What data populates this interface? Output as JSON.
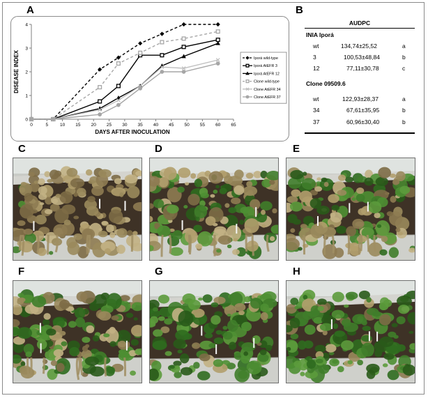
{
  "panels": {
    "a": "A",
    "b": "B",
    "c": "C",
    "d": "D",
    "e": "E",
    "f": "F",
    "g": "G",
    "h": "H"
  },
  "chart_data": {
    "type": "line",
    "xlabel": "DAYS AFTER INOCULATION",
    "ylabel": "DISEASE INDEX",
    "xlim": [
      0,
      65
    ],
    "ylim": [
      0,
      4
    ],
    "xticks": [
      0,
      5,
      10,
      15,
      20,
      25,
      30,
      35,
      40,
      45,
      50,
      55,
      60,
      65
    ],
    "yticks": [
      0,
      1,
      2,
      3,
      4
    ],
    "grid": false,
    "legend_position": "right",
    "series": [
      {
        "name": "Iporá wild-type",
        "color": "#000000",
        "dash": "4,3",
        "marker": "diamond",
        "x": [
          0,
          7,
          22,
          28,
          35,
          42,
          49,
          60
        ],
        "y": [
          0,
          0,
          2.1,
          2.6,
          3.2,
          3.6,
          4.0,
          4.0
        ]
      },
      {
        "name": "Iporá AtEFR 3",
        "color": "#000000",
        "dash": "",
        "marker": "square",
        "x": [
          0,
          7,
          22,
          28,
          35,
          42,
          49,
          60
        ],
        "y": [
          0,
          0,
          0.75,
          1.4,
          2.7,
          2.7,
          3.05,
          3.35
        ]
      },
      {
        "name": "Iporá AtEFR 12",
        "color": "#000000",
        "dash": "",
        "marker": "triangle",
        "x": [
          0,
          7,
          22,
          28,
          35,
          42,
          49,
          60
        ],
        "y": [
          0,
          0,
          0.45,
          0.9,
          1.4,
          2.25,
          2.65,
          3.2
        ]
      },
      {
        "name": "Clone wild-type",
        "color": "#a6a6a6",
        "dash": "4,3",
        "marker": "square",
        "x": [
          0,
          7,
          22,
          28,
          35,
          42,
          49,
          60
        ],
        "y": [
          0,
          0,
          1.35,
          2.35,
          2.8,
          3.25,
          3.4,
          3.7
        ]
      },
      {
        "name": "Clone AtEFR 34",
        "color": "#bfbfbf",
        "dash": "",
        "marker": "x",
        "x": [
          0,
          7,
          22,
          28,
          35,
          42,
          49,
          60
        ],
        "y": [
          0,
          0,
          0.4,
          0.8,
          1.4,
          2.2,
          2.15,
          2.5
        ]
      },
      {
        "name": "Clone AtEFR 37",
        "color": "#a6a6a6",
        "dash": "",
        "marker": "circle",
        "x": [
          0,
          7,
          22,
          28,
          35,
          42,
          49,
          60
        ],
        "y": [
          0,
          0,
          0.2,
          0.6,
          1.3,
          2.0,
          2.0,
          2.35
        ]
      }
    ]
  },
  "audpc": {
    "title": "AUDPC",
    "groups": [
      {
        "name": "INIA Iporá",
        "rows": [
          {
            "line": "wt",
            "value": "134,74±25,52",
            "letter": "a"
          },
          {
            "line": "3",
            "value": "100,53±48,84",
            "letter": "b"
          },
          {
            "line": "12",
            "value": "77,11±30,78",
            "letter": "c"
          }
        ]
      },
      {
        "name": "Clone 09509.6",
        "rows": [
          {
            "line": "wt",
            "value": "122,93±28,37",
            "letter": "a"
          },
          {
            "line": "34",
            "value": "67,61±35,95",
            "letter": "b"
          },
          {
            "line": "37",
            "value": "60,96±30,40",
            "letter": "b"
          }
        ]
      }
    ]
  },
  "photos": {
    "c": {
      "green": 0.05,
      "dry": 0.85
    },
    "d": {
      "green": 0.45,
      "dry": 0.55
    },
    "e": {
      "green": 0.55,
      "dry": 0.45
    },
    "f": {
      "green": 0.55,
      "dry": 0.45
    },
    "g": {
      "green": 0.92,
      "dry": 0.1
    },
    "h": {
      "green": 0.85,
      "dry": 0.15
    }
  }
}
